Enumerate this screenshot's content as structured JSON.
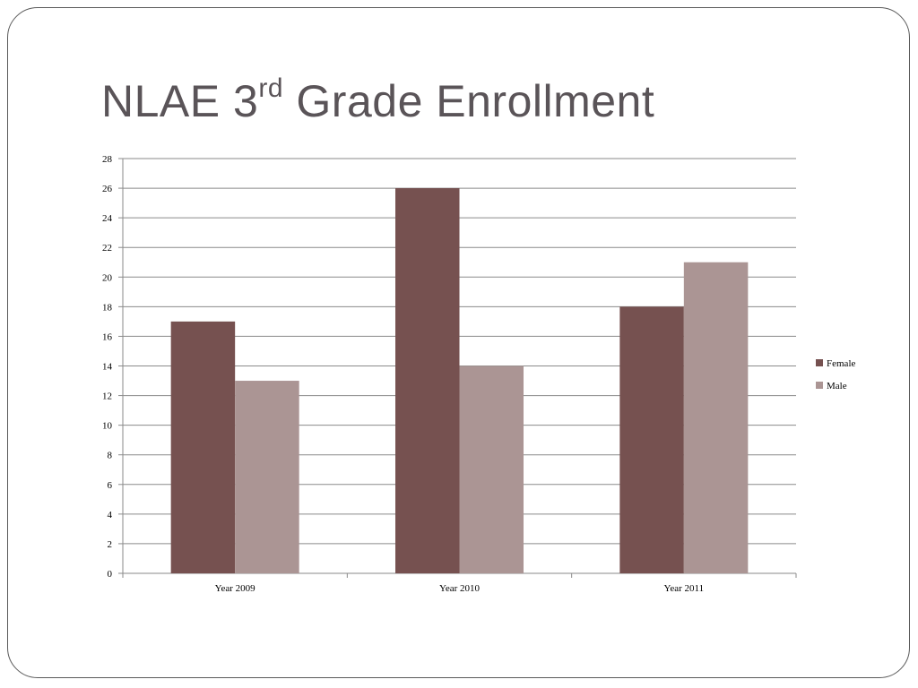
{
  "slide": {
    "title_main": "NLAE 3",
    "title_sup": "rd",
    "title_rest": " Grade Enrollment"
  },
  "chart_data": {
    "type": "bar",
    "categories": [
      "Year 2009",
      "Year 2010",
      "Year 2011"
    ],
    "series": [
      {
        "name": "Female",
        "values": [
          17,
          26,
          18
        ],
        "color": "#765150"
      },
      {
        "name": "Male",
        "values": [
          13,
          14,
          21
        ],
        "color": "#ab9594"
      }
    ],
    "ylim": [
      0,
      28
    ],
    "ytick_step": 2,
    "yticks": [
      "0",
      "2",
      "4",
      "6",
      "8",
      "10",
      "12",
      "14",
      "16",
      "18",
      "20",
      "22",
      "24",
      "26",
      "28"
    ],
    "grid": true,
    "legend_position": "right",
    "xlabel": "",
    "ylabel": ""
  }
}
